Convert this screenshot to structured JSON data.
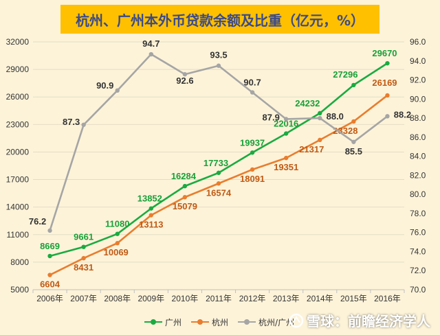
{
  "title": "杭州、广州本外币贷款余额及比重（亿元，%）",
  "chart_data": {
    "type": "line",
    "title": "杭州、广州本外币贷款余额及比重（亿元，%）",
    "categories": [
      "2006年",
      "2007年",
      "2008年",
      "2009年",
      "2010年",
      "2011年",
      "2012年",
      "2013年",
      "2014年",
      "2015年",
      "2016年"
    ],
    "series": [
      {
        "name": "广州",
        "axis": "left",
        "color": "#1aab40",
        "label_color": "#18a038",
        "values": [
          8669,
          9661,
          11080,
          13852,
          16284,
          17733,
          19937,
          22016,
          24232,
          27296,
          29670
        ]
      },
      {
        "name": "杭州",
        "axis": "left",
        "color": "#e97d2e",
        "label_color": "#c05a14",
        "values": [
          6604,
          8431,
          10069,
          13113,
          15079,
          16574,
          18091,
          19351,
          21317,
          23328,
          26169
        ]
      },
      {
        "name": "杭州/广州",
        "axis": "right",
        "color": "#a5a5a5",
        "label_color": "#333333",
        "values": [
          76.2,
          87.3,
          90.9,
          94.7,
          92.6,
          93.5,
          90.7,
          87.9,
          88.0,
          85.5,
          88.2
        ]
      }
    ],
    "left_axis": {
      "min": 5000,
      "max": 32000,
      "ticks": [
        5000,
        8000,
        11000,
        14000,
        17000,
        20000,
        23000,
        26000,
        29000,
        32000
      ]
    },
    "right_axis": {
      "min": 70,
      "max": 96,
      "ticks": [
        "70.0",
        "72.0",
        "74.0",
        "76.0",
        "78.0",
        "80.0",
        "82.0",
        "84.0",
        "86.0",
        "88.0",
        "90.0",
        "92.0",
        "94.0",
        "96.0"
      ]
    },
    "grid": true,
    "legend_position": "bottom"
  },
  "legend": {
    "guangzhou": "广州",
    "hangzhou": "杭州",
    "ratio": "杭州/广州"
  },
  "watermark": "雪球：前瞻经济学人"
}
